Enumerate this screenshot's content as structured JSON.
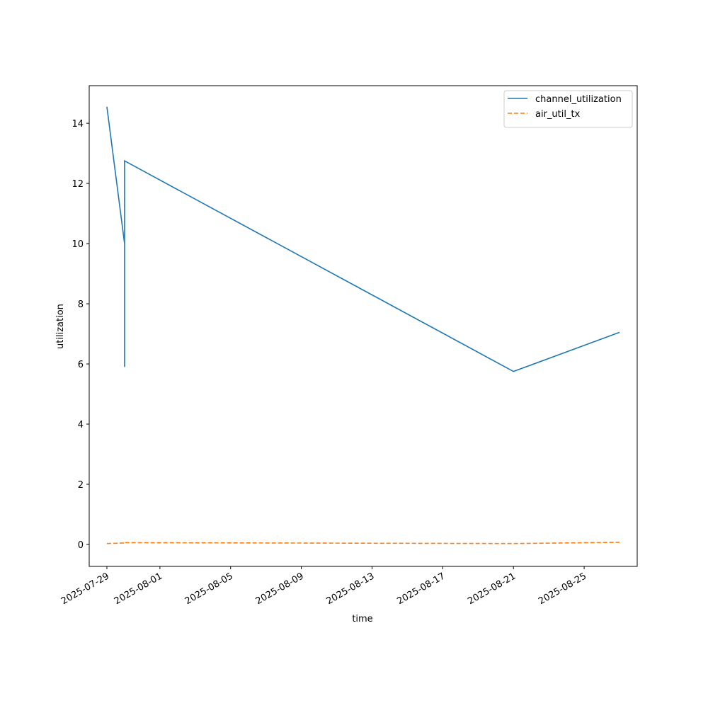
{
  "chart_data": {
    "type": "line",
    "x_label": "time",
    "y_label": "utilization",
    "x": [
      "2025-07-29",
      "2025-07-30",
      "2025-07-30",
      "2025-07-30",
      "2025-08-21",
      "2025-08-27"
    ],
    "series": [
      {
        "name": "channel_utilization",
        "color": "#1f77b4",
        "linestyle": "solid",
        "values": [
          14.55,
          10.0,
          5.9,
          12.75,
          5.75,
          7.05
        ]
      },
      {
        "name": "air_util_tx",
        "color": "#ff7f0e",
        "linestyle": "dashed",
        "values": [
          0.03,
          0.05,
          0.04,
          0.06,
          0.03,
          0.07
        ]
      }
    ],
    "xlim": [
      "2025-07-28",
      "2025-08-28"
    ],
    "xticks": [
      "2025-07-29",
      "2025-08-01",
      "2025-08-05",
      "2025-08-09",
      "2025-08-13",
      "2025-08-17",
      "2025-08-21",
      "2025-08-25"
    ],
    "ylim": [
      -0.73,
      15.25
    ],
    "yticks": [
      0,
      2,
      4,
      6,
      8,
      10,
      12,
      14
    ],
    "grid": false,
    "legend": "upper right"
  }
}
